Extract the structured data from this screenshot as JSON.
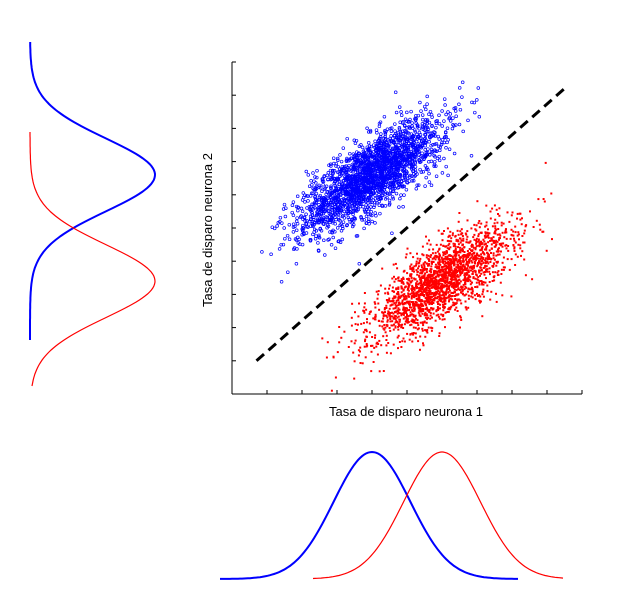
{
  "chart_data": [
    {
      "type": "scatter",
      "title": "",
      "xlabel": "Tasa de disparo neurona 1",
      "ylabel": "Tasa de disparo neurona 2",
      "xlim": [
        0,
        10
      ],
      "ylim": [
        0,
        10
      ],
      "grid": false,
      "series": [
        {
          "name": "blue-cluster",
          "color": "#0000ff",
          "marker": "open-circle",
          "mean": [
            4.0,
            6.6
          ],
          "sd_major": 1.25,
          "sd_minor": 0.45,
          "angle_deg": 38,
          "n": 2200
        },
        {
          "name": "red-cluster",
          "color": "#ff0000",
          "marker": "filled-square",
          "mean": [
            6.0,
            3.4
          ],
          "sd_major": 1.25,
          "sd_minor": 0.45,
          "angle_deg": 38,
          "n": 2200
        }
      ],
      "decision_boundary": {
        "style": "dashed",
        "color": "#000000",
        "x": [
          0.7,
          9.5
        ],
        "y": [
          1.0,
          9.2
        ]
      }
    },
    {
      "type": "line",
      "name": "marginal-neurona-1",
      "series": [
        {
          "name": "blue",
          "color": "#0000ff",
          "mean": 4.0,
          "sd": 1.1
        },
        {
          "name": "red",
          "color": "#ff0000",
          "mean": 6.0,
          "sd": 1.1
        }
      ]
    },
    {
      "type": "line",
      "name": "marginal-neurona-2",
      "series": [
        {
          "name": "blue",
          "color": "#0000ff",
          "mean": 6.6,
          "sd": 1.1
        },
        {
          "name": "red",
          "color": "#ff0000",
          "mean": 3.4,
          "sd": 1.1
        }
      ]
    }
  ]
}
